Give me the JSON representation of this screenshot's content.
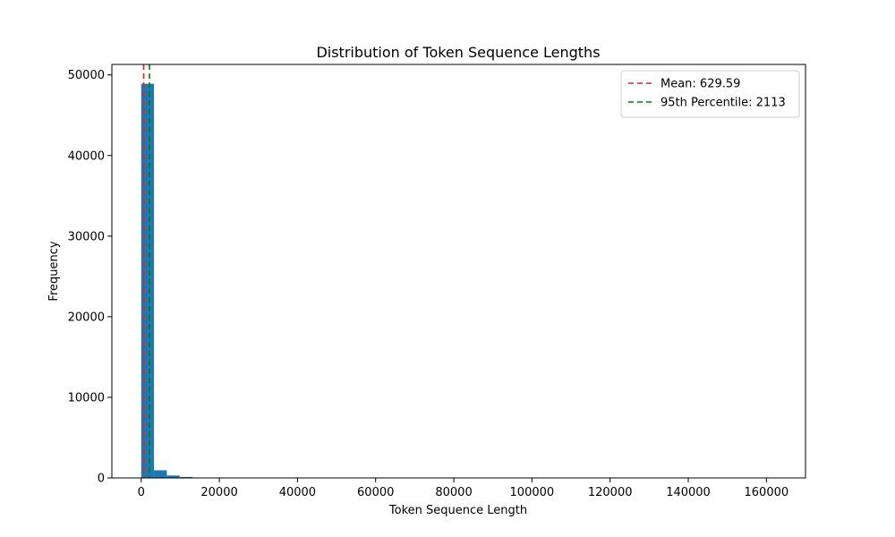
{
  "chart_data": {
    "type": "bar",
    "title": "Distribution of Token Sequence Lengths",
    "xlabel": "Token Sequence Length",
    "ylabel": "Frequency",
    "xlim": [
      -7500,
      170000
    ],
    "ylim": [
      0,
      51300
    ],
    "xticks": [
      0,
      20000,
      40000,
      60000,
      80000,
      100000,
      120000,
      140000,
      160000
    ],
    "yticks": [
      0,
      10000,
      20000,
      30000,
      40000,
      50000
    ],
    "bin_width": 3280,
    "bins": [
      {
        "x0": 0,
        "count": 48900
      },
      {
        "x0": 3280,
        "count": 950
      },
      {
        "x0": 6560,
        "count": 300
      },
      {
        "x0": 9840,
        "count": 120
      },
      {
        "x0": 13120,
        "count": 40
      },
      {
        "x0": 16400,
        "count": 15
      },
      {
        "x0": 19680,
        "count": 8
      },
      {
        "x0": 22960,
        "count": 4
      },
      {
        "x0": 26240,
        "count": 2
      },
      {
        "x0": 29520,
        "count": 1
      }
    ],
    "bar_color": "#1f77b4",
    "reference_lines": [
      {
        "label": "Mean: 629.59",
        "x": 629.59,
        "color": "#d62728",
        "style": "dashed"
      },
      {
        "label": "95th Percentile: 2113",
        "x": 2113,
        "color": "#008000",
        "style": "dashed"
      }
    ],
    "legend_position": "top-right",
    "grid": false
  }
}
